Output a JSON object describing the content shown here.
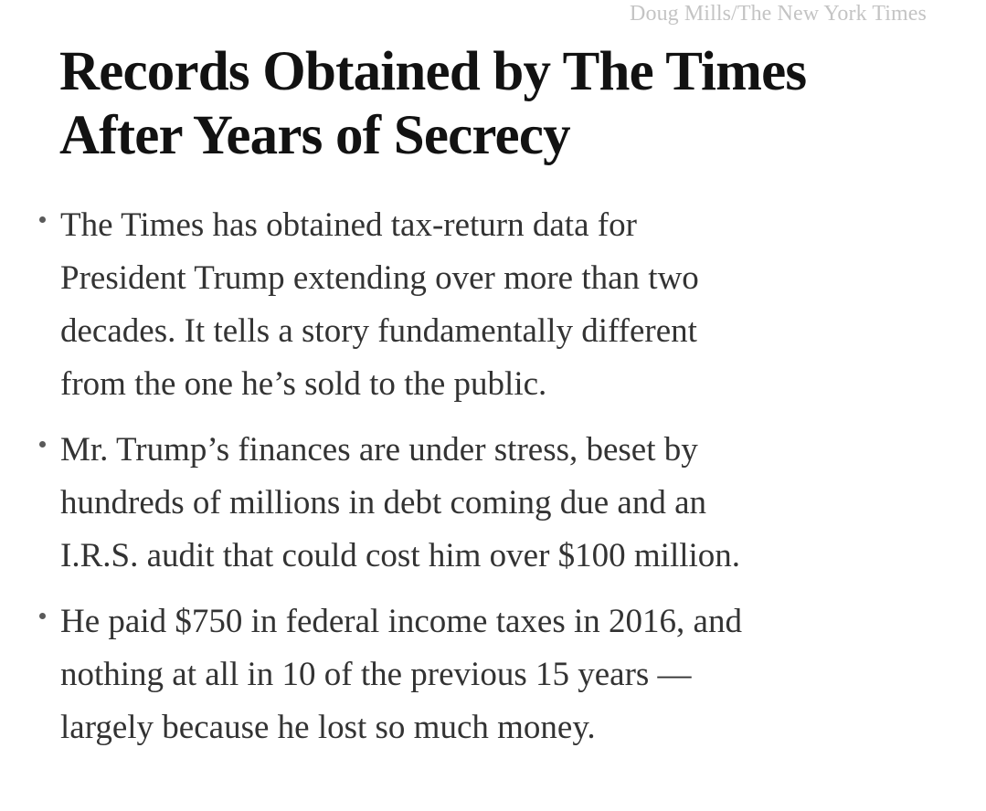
{
  "photo_credit": "Doug Mills/The New York Times",
  "headline": {
    "line1": "Records Obtained by The Times",
    "line2": "After Years of Secrecy"
  },
  "summary": {
    "items": [
      {
        "lines": [
          "The Times has obtained tax-return data for",
          "President Trump extending over more than two",
          "decades. It tells a story fundamentally different",
          "from the one he’s sold to the public."
        ]
      },
      {
        "lines": [
          "Mr. Trump’s finances are under stress, beset by",
          "hundreds of millions in debt coming due and an",
          "I.R.S. audit that could cost him over $100 million."
        ]
      },
      {
        "lines": [
          "He paid $750 in federal income taxes in 2016, and",
          "nothing at all in 10 of the previous 15 years —",
          "largely because he lost so much money."
        ]
      }
    ]
  }
}
